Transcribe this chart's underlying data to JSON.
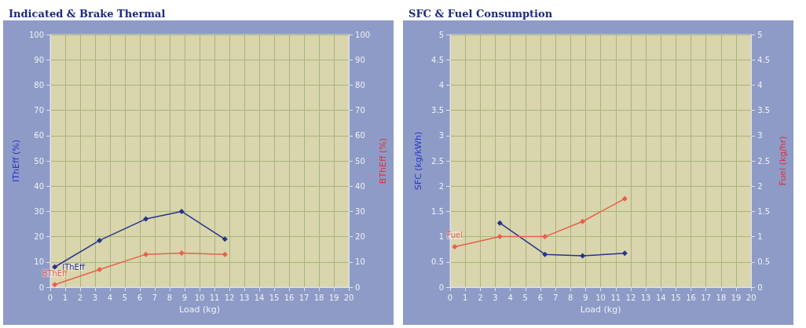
{
  "chart_data": [
    {
      "type": "line",
      "title": "Indicated & Brake Thermal",
      "xlabel": "Load (kg)",
      "ylabel": "IThEff (%)",
      "y2label": "BThEff (%)",
      "series": [
        {
          "name": "IThEff",
          "color": "#27338a",
          "x": [
            0.3,
            3.3,
            6.4,
            8.8,
            11.7
          ],
          "values": [
            8,
            18.5,
            27,
            30,
            19
          ]
        },
        {
          "name": "BThEff",
          "color": "#e8604c",
          "x": [
            0.3,
            3.3,
            6.4,
            8.8,
            11.7
          ],
          "values": [
            1,
            7,
            13,
            13.5,
            13
          ]
        }
      ],
      "xlim": [
        0,
        20
      ],
      "xticks": [
        0,
        1,
        2,
        3,
        4,
        5,
        6,
        7,
        8,
        9,
        10,
        11,
        12,
        13,
        14,
        15,
        16,
        17,
        18,
        19,
        20
      ],
      "ylim": [
        0,
        100
      ],
      "yticks": [
        0,
        10,
        20,
        30,
        40,
        50,
        60,
        70,
        80,
        90,
        100
      ],
      "y2lim": [
        0,
        100
      ],
      "y2ticks": [
        0,
        10,
        20,
        30,
        40,
        50,
        60,
        70,
        80,
        90,
        100
      ],
      "grid": true,
      "marker": "diamond",
      "line_style": "solid"
    },
    {
      "type": "line",
      "title": "SFC & Fuel Consumption",
      "xlabel": "Load (kg)",
      "ylabel": "SFC (kg/kWh)",
      "y2label": "Fuel (kg/hr)",
      "series": [
        {
          "color": "#27338a",
          "x": [
            3.3,
            6.3,
            8.8,
            11.6
          ],
          "values": [
            1.27,
            0.65,
            0.62,
            0.67
          ]
        },
        {
          "name": "Fuel",
          "color": "#e8604c",
          "x": [
            0.3,
            3.3,
            6.3,
            8.8,
            11.6
          ],
          "values": [
            0.8,
            1.0,
            1.0,
            1.3,
            1.75
          ]
        }
      ],
      "xlim": [
        0,
        20
      ],
      "xticks": [
        0,
        1,
        2,
        3,
        4,
        5,
        6,
        7,
        8,
        9,
        10,
        11,
        12,
        13,
        14,
        15,
        16,
        17,
        18,
        19,
        20
      ],
      "ylim": [
        0,
        5
      ],
      "yticks": [
        0,
        0.5,
        1,
        1.5,
        2,
        2.5,
        3,
        3.5,
        4,
        4.5,
        5
      ],
      "y2lim": [
        0,
        5
      ],
      "y2ticks": [
        0,
        0.5,
        1,
        1.5,
        2,
        2.5,
        3,
        3.5,
        4,
        4.5,
        5
      ],
      "grid": true,
      "marker": "diamond",
      "line_style": "solid"
    }
  ]
}
